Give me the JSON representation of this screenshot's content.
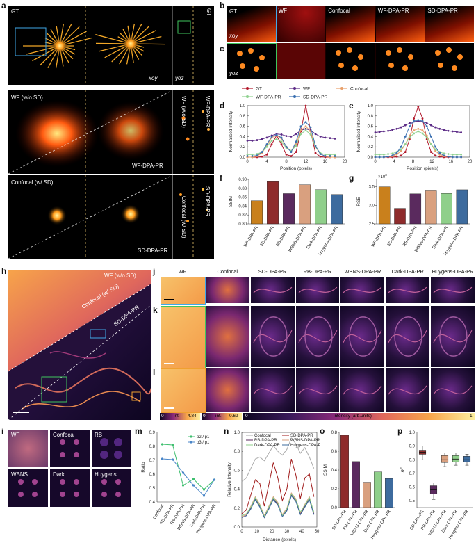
{
  "panels": {
    "a": {
      "label": "a",
      "gt": "GT",
      "xoy": "xoy",
      "yoz": "yoz",
      "gt_v": "GT",
      "wf": "WF (w/o SD)",
      "wf_dpa": "WF-DPA-PR",
      "wf_side": "WF (w/o SD)",
      "wf_side2": "WF-DPA-PR",
      "conf": "Confocal (w/ SD)",
      "sd_dpa": "SD-DPA-PR",
      "conf_side": "Confocal (w/ SD)",
      "sd_side": "SD-DPA-PR"
    },
    "b": {
      "label": "b",
      "headers": [
        "GT",
        "WF",
        "Confocal",
        "WF-DPA-PR",
        "SD-DPA-PR"
      ],
      "xoy": "xoy"
    },
    "c": {
      "label": "c",
      "yoz": "yoz"
    },
    "h": {
      "label": "h",
      "wf": "WF (w/o SD)",
      "conf": "Confocal (w/ SD)",
      "sd": "SD-DPA-PR"
    },
    "i": {
      "label": "i",
      "tiles": [
        "WF",
        "Confocal",
        "RB",
        "WBNS",
        "Dark",
        "Huygens"
      ]
    },
    "j": {
      "label": "j",
      "headers": [
        "WF",
        "Confocal",
        "SD-DPA-PR",
        "RB-DPA-PR",
        "WBNS-DPA-PR",
        "Dark-DPA-PR",
        "Huygens-DPA-PR"
      ]
    },
    "k": {
      "label": "k"
    },
    "l": {
      "label": "l"
    },
    "colorbar": {
      "a0": "0",
      "a1": "int.",
      "a2": "4.84",
      "b0": "0",
      "b1": "int.",
      "b2": "0.69",
      "c0": "0",
      "c1": "intensity (arb.units)",
      "c2": "1"
    }
  },
  "legend_de": {
    "items": [
      {
        "name": "GT",
        "color": "#b2182b"
      },
      {
        "name": "WF",
        "color": "#5b2a86"
      },
      {
        "name": "Confocal",
        "color": "#e8a06a"
      },
      {
        "name": "WF-DPA-PR",
        "color": "#8fd18f"
      },
      {
        "name": "SD-DPA-PR",
        "color": "#3a6fb0"
      }
    ]
  },
  "chart_data": [
    {
      "id": "d",
      "label": "d",
      "type": "line",
      "xlabel": "Position (pixels)",
      "ylabel": "Normalised Intensity",
      "xlim": [
        0,
        20
      ],
      "ylim": [
        0,
        1.0
      ],
      "xticks": [
        "0",
        "4",
        "8",
        "12",
        "16",
        "20"
      ],
      "yticks": [
        "0.0",
        "0.2",
        "0.4",
        "0.6",
        "0.8",
        "1.0"
      ],
      "x": [
        0,
        1,
        2,
        3,
        4,
        5,
        6,
        7,
        8,
        9,
        10,
        11,
        12,
        13,
        14,
        15,
        16,
        17,
        18
      ],
      "series": [
        {
          "name": "GT",
          "color": "#b2182b",
          "values": [
            0.0,
            0.0,
            0.0,
            0.01,
            0.05,
            0.25,
            0.42,
            0.25,
            0.05,
            0.02,
            0.1,
            0.5,
            1.0,
            0.5,
            0.08,
            0.01,
            0.0,
            0.0,
            0.0
          ]
        },
        {
          "name": "WF",
          "color": "#5b2a86",
          "values": [
            0.32,
            0.32,
            0.33,
            0.35,
            0.38,
            0.42,
            0.45,
            0.44,
            0.41,
            0.4,
            0.45,
            0.52,
            0.55,
            0.52,
            0.45,
            0.4,
            0.38,
            0.37,
            0.36
          ]
        },
        {
          "name": "Confocal",
          "color": "#e8a06a",
          "values": [
            0.0,
            0.0,
            0.02,
            0.08,
            0.22,
            0.38,
            0.42,
            0.36,
            0.2,
            0.12,
            0.25,
            0.52,
            0.6,
            0.5,
            0.2,
            0.06,
            0.02,
            0.0,
            0.0
          ]
        },
        {
          "name": "WF-DPA-PR",
          "color": "#8fd18f",
          "values": [
            0.05,
            0.05,
            0.06,
            0.1,
            0.2,
            0.32,
            0.35,
            0.3,
            0.18,
            0.12,
            0.22,
            0.45,
            0.52,
            0.44,
            0.2,
            0.08,
            0.05,
            0.05,
            0.05
          ]
        },
        {
          "name": "SD-DPA-PR",
          "color": "#3a6fb0",
          "values": [
            0.02,
            0.02,
            0.03,
            0.1,
            0.25,
            0.4,
            0.43,
            0.38,
            0.2,
            0.1,
            0.3,
            0.6,
            0.68,
            0.58,
            0.22,
            0.06,
            0.02,
            0.02,
            0.02
          ]
        }
      ]
    },
    {
      "id": "e",
      "label": "e",
      "type": "line",
      "xlabel": "Position (pixels)",
      "ylabel": "Normalised Intensity",
      "xlim": [
        0,
        22
      ],
      "ylim": [
        0,
        1.0
      ],
      "xticks": [
        "0",
        "4",
        "8",
        "12",
        "16",
        "20"
      ],
      "yticks": [
        "0.0",
        "0.2",
        "0.4",
        "0.6",
        "0.8",
        "1.0"
      ],
      "x": [
        0,
        1,
        2,
        3,
        4,
        5,
        6,
        7,
        8,
        9,
        10,
        11,
        12,
        13,
        14,
        15,
        16,
        17,
        18,
        19,
        20
      ],
      "series": [
        {
          "name": "GT",
          "color": "#b2182b",
          "values": [
            0.0,
            0.0,
            0.0,
            0.0,
            0.0,
            0.01,
            0.03,
            0.1,
            0.35,
            0.75,
            0.98,
            0.75,
            0.35,
            0.1,
            0.03,
            0.01,
            0.0,
            0.0,
            0.0,
            0.0,
            0.0
          ]
        },
        {
          "name": "WF",
          "color": "#5b2a86",
          "values": [
            0.48,
            0.49,
            0.5,
            0.51,
            0.53,
            0.55,
            0.58,
            0.62,
            0.66,
            0.69,
            0.7,
            0.69,
            0.66,
            0.62,
            0.58,
            0.55,
            0.53,
            0.51,
            0.5,
            0.49,
            0.48
          ]
        },
        {
          "name": "Confocal",
          "color": "#e8a06a",
          "values": [
            0.0,
            0.0,
            0.0,
            0.01,
            0.02,
            0.05,
            0.12,
            0.25,
            0.42,
            0.52,
            0.55,
            0.52,
            0.42,
            0.25,
            0.12,
            0.05,
            0.02,
            0.01,
            0.0,
            0.0,
            0.0
          ]
        },
        {
          "name": "WF-DPA-PR",
          "color": "#8fd18f",
          "values": [
            0.05,
            0.05,
            0.05,
            0.06,
            0.07,
            0.1,
            0.15,
            0.25,
            0.38,
            0.46,
            0.5,
            0.46,
            0.38,
            0.25,
            0.15,
            0.1,
            0.07,
            0.06,
            0.05,
            0.05,
            0.05
          ]
        },
        {
          "name": "SD-DPA-PR",
          "color": "#3a6fb0",
          "values": [
            0.0,
            0.0,
            0.0,
            0.01,
            0.03,
            0.08,
            0.2,
            0.4,
            0.6,
            0.7,
            0.72,
            0.7,
            0.6,
            0.4,
            0.2,
            0.08,
            0.03,
            0.01,
            0.0,
            0.0,
            0.0
          ]
        }
      ]
    },
    {
      "id": "f",
      "label": "f",
      "type": "bar",
      "ylabel": "SSIM",
      "ylim": [
        0.8,
        0.9
      ],
      "yticks": [
        "0.80",
        "0.82",
        "0.84",
        "0.86",
        "0.88",
        "0.90"
      ],
      "categories": [
        "WF-DPA-PR",
        "SD-DPA-PR",
        "RB-DPA-PR",
        "WBNS-DPA-PR",
        "Dark-DPA-PR",
        "Huygens-DPA-PR"
      ],
      "values": [
        0.852,
        0.895,
        0.868,
        0.888,
        0.877,
        0.866
      ],
      "colors": [
        "#c9801c",
        "#8e2b2b",
        "#5a2a5e",
        "#d9a07f",
        "#8fcf8a",
        "#3d6b9e"
      ]
    },
    {
      "id": "g",
      "label": "g",
      "type": "bar",
      "ylabel": "RSE",
      "exponent": "×10",
      "exponent_power": "3",
      "ylim": [
        2.5,
        3.7
      ],
      "yticks": [
        "2.5",
        "3.0",
        "3.5"
      ],
      "categories": [
        "WF-DPA-PR",
        "SD-DPA-PR",
        "RB-DPA-PR",
        "WBNS-DPA-PR",
        "Dark-DPA-PR",
        "Huygens-DPA-PR"
      ],
      "values": [
        3.5,
        2.92,
        3.31,
        3.41,
        3.32,
        3.42
      ],
      "colors": [
        "#c9801c",
        "#8e2b2b",
        "#5a2a5e",
        "#d9a07f",
        "#8fcf8a",
        "#3d6b9e"
      ]
    },
    {
      "id": "m",
      "label": "m",
      "type": "line",
      "ylabel": "Ratio",
      "ylim": [
        0.4,
        0.9
      ],
      "yticks": [
        "0.4",
        "0.5",
        "0.6",
        "0.7",
        "0.8",
        "0.9"
      ],
      "categories": [
        "Confocal",
        "SD-DPA-PR",
        "RB-DPA-PR",
        "WBNS-DPA-PR",
        "Dark-DPA-PR",
        "Huygens-DPA-PR"
      ],
      "series": [
        {
          "name": "p2 / p1",
          "color": "#3fbf6f",
          "values": [
            0.815,
            0.81,
            0.52,
            0.565,
            0.49,
            0.56
          ]
        },
        {
          "name": "p3 / p1",
          "color": "#4a86c8",
          "values": [
            0.71,
            0.705,
            0.61,
            0.52,
            0.445,
            0.56
          ]
        }
      ]
    },
    {
      "id": "n",
      "label": "n",
      "type": "line",
      "xlabel": "Distance (pixels)",
      "ylabel": "Relative Intensity",
      "xlim": [
        0,
        50
      ],
      "ylim": [
        0,
        1.0
      ],
      "xticks": [
        "0",
        "10",
        "20",
        "30",
        "40",
        "50"
      ],
      "yticks": [
        "0.0",
        "0.2",
        "0.4",
        "0.6",
        "0.8",
        "1.0"
      ],
      "x": [
        0,
        3,
        6,
        9,
        12,
        15,
        18,
        21,
        24,
        27,
        30,
        33,
        36,
        39,
        42,
        45,
        48
      ],
      "series": [
        {
          "name": "Confocal",
          "color": "#aaaaaa",
          "values": [
            0.48,
            0.52,
            0.62,
            0.72,
            0.74,
            0.7,
            0.78,
            0.86,
            0.8,
            0.76,
            0.82,
            0.94,
            0.88,
            0.78,
            0.84,
            0.74,
            0.62
          ]
        },
        {
          "name": "SD-DPA-PR",
          "color": "#a01a1a",
          "values": [
            0.14,
            0.18,
            0.34,
            0.5,
            0.46,
            0.22,
            0.45,
            0.68,
            0.52,
            0.28,
            0.4,
            0.72,
            0.55,
            0.3,
            0.52,
            0.56,
            0.32
          ]
        },
        {
          "name": "RB-DPA-PR",
          "color": "#5a2a5e",
          "values": [
            0.1,
            0.12,
            0.2,
            0.3,
            0.22,
            0.1,
            0.2,
            0.3,
            0.24,
            0.12,
            0.18,
            0.34,
            0.28,
            0.14,
            0.22,
            0.3,
            0.14
          ]
        },
        {
          "name": "WBNS-DPA-PR",
          "color": "#d9a07f",
          "values": [
            0.11,
            0.13,
            0.22,
            0.32,
            0.24,
            0.12,
            0.22,
            0.32,
            0.26,
            0.13,
            0.2,
            0.36,
            0.3,
            0.15,
            0.24,
            0.32,
            0.15
          ]
        },
        {
          "name": "Dark-DPA-PR",
          "color": "#8fcf8a",
          "values": [
            0.12,
            0.14,
            0.21,
            0.31,
            0.23,
            0.11,
            0.21,
            0.31,
            0.25,
            0.12,
            0.19,
            0.35,
            0.29,
            0.16,
            0.23,
            0.31,
            0.16
          ]
        },
        {
          "name": "Huygens-DPA-PR",
          "color": "#3d6b9e",
          "values": [
            0.1,
            0.12,
            0.19,
            0.29,
            0.21,
            0.1,
            0.19,
            0.29,
            0.23,
            0.11,
            0.17,
            0.33,
            0.27,
            0.13,
            0.21,
            0.29,
            0.13
          ]
        }
      ]
    },
    {
      "id": "o",
      "label": "o",
      "type": "bar",
      "ylabel": "SSIM",
      "ylim": [
        0,
        0.8
      ],
      "yticks": [
        "0.0",
        "0.2",
        "0.4",
        "0.6",
        "0.8"
      ],
      "categories": [
        "SD-DPA-PR",
        "RB-DPA-PR",
        "WBNS-DPA-PR",
        "Dark-DPA-PR",
        "Huygens-DPA-PR"
      ],
      "values": [
        0.77,
        0.49,
        0.27,
        0.38,
        0.31
      ],
      "colors": [
        "#8e2b2b",
        "#5a2a5e",
        "#d9a07f",
        "#8fcf8a",
        "#3d6b9e"
      ]
    },
    {
      "id": "p",
      "label": "p",
      "type": "box",
      "ylabel": "R",
      "ylabel_sup": "2",
      "ylim": [
        0.45,
        1.0
      ],
      "yticks": [
        "0.5",
        "0.6",
        "0.7",
        "0.8",
        "0.9",
        "1.0"
      ],
      "categories": [
        "SD-DPA-PR",
        "RB-DPA-PR",
        "WBNS-DPA-PR",
        "Dark-DPA-PR",
        "Huygens-DPA-PR"
      ],
      "boxes": [
        {
          "min": 0.8,
          "q1": 0.84,
          "median": 0.855,
          "q3": 0.87,
          "max": 0.9,
          "color": "#8e2b2b"
        },
        {
          "min": 0.51,
          "q1": 0.55,
          "median": 0.58,
          "q3": 0.61,
          "max": 0.63,
          "color": "#5a2a5e"
        },
        {
          "min": 0.75,
          "q1": 0.78,
          "median": 0.8,
          "q3": 0.83,
          "max": 0.85,
          "color": "#d9a07f"
        },
        {
          "min": 0.76,
          "q1": 0.785,
          "median": 0.805,
          "q3": 0.83,
          "max": 0.85,
          "color": "#8fcf8a"
        },
        {
          "min": 0.76,
          "q1": 0.785,
          "median": 0.8,
          "q3": 0.825,
          "max": 0.84,
          "color": "#3d6b9e"
        }
      ]
    }
  ]
}
